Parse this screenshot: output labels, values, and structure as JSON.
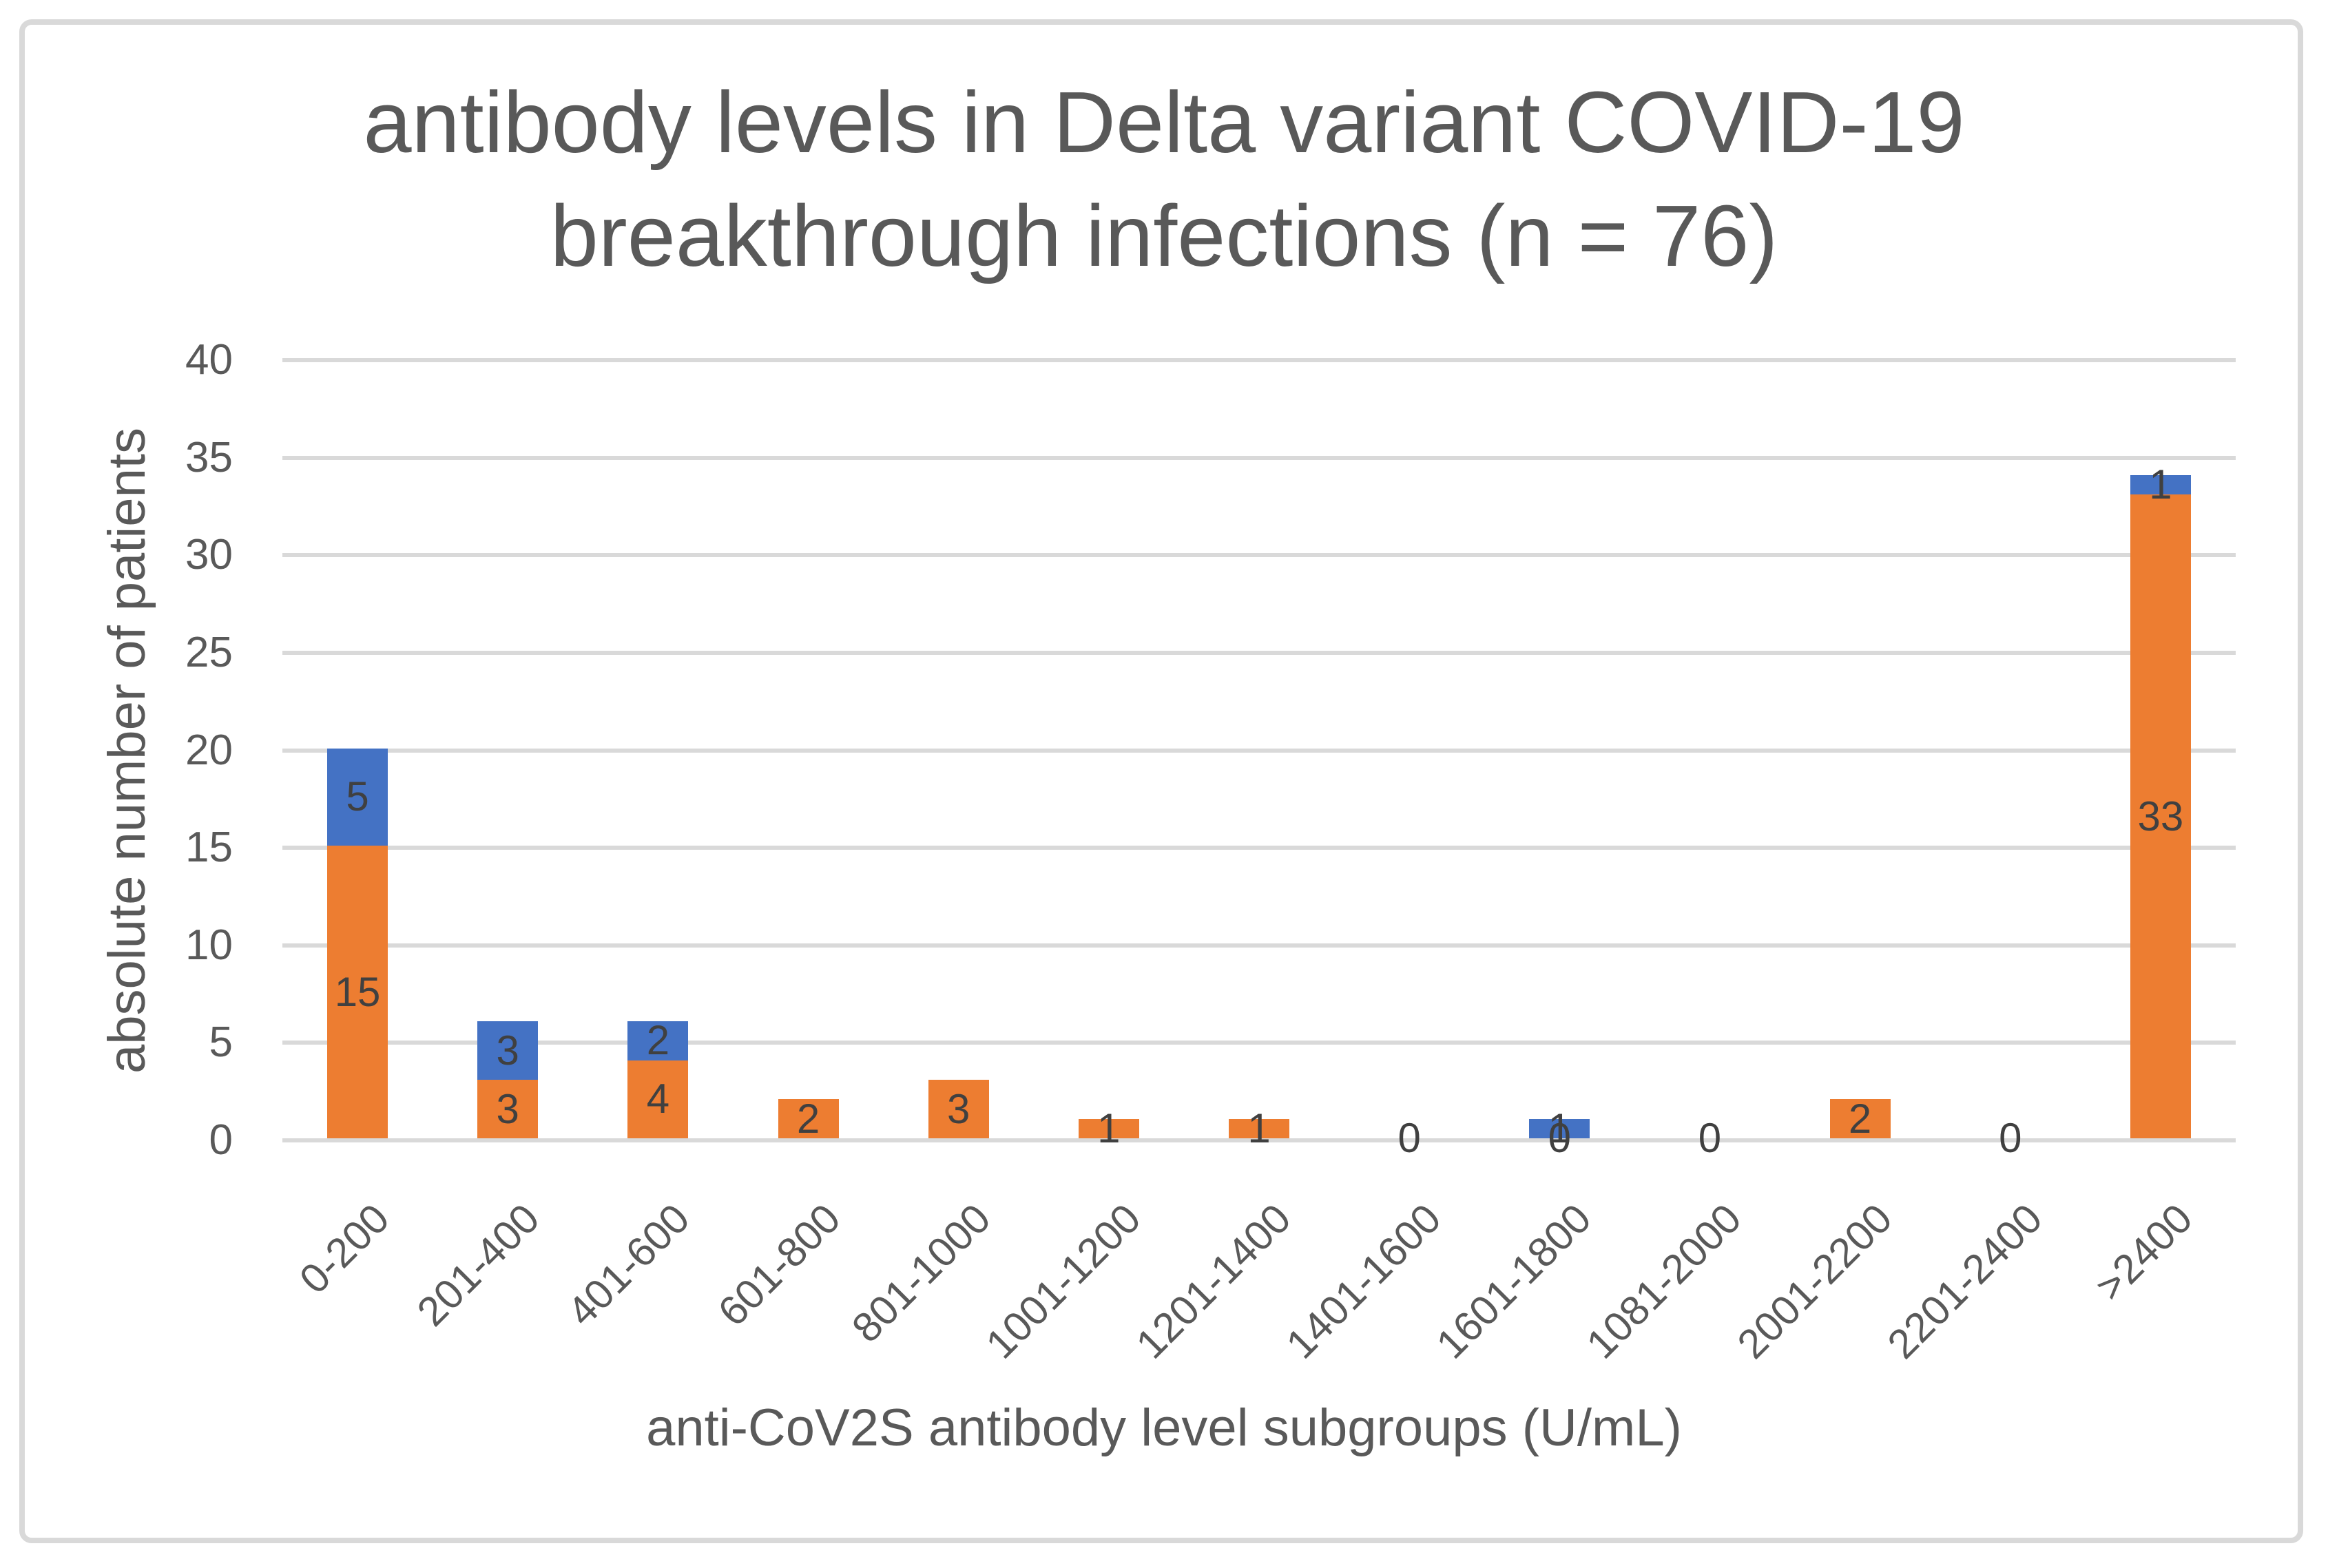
{
  "title_lines": [
    "antibody levels in Delta variant COVID-19",
    "breakthrough infections (n = 76)"
  ],
  "chart_data": {
    "type": "bar",
    "stacked": true,
    "title": "antibody levels in Delta variant COVID-19 breakthrough infections (n = 76)",
    "xlabel": "anti-CoV2S antibody level subgroups (U/mL)",
    "ylabel": "absolute number of patients",
    "categories": [
      "0-200",
      "201-400",
      "401-600",
      "601-800",
      "801-1000",
      "1001-1200",
      "1201-1400",
      "1401-1600",
      "1601-1800",
      "1081-2000",
      "2001-2200",
      "2201-2400",
      ">2400"
    ],
    "series": [
      {
        "name": "orange-bottom-segment",
        "color": "#ED7D31",
        "values": [
          15,
          3,
          4,
          2,
          3,
          1,
          1,
          0,
          0,
          0,
          2,
          0,
          33
        ],
        "data_labels": "all"
      },
      {
        "name": "blue-top-segment",
        "color": "#4472C4",
        "values": [
          5,
          3,
          2,
          0,
          0,
          0,
          0,
          0,
          1,
          0,
          0,
          0,
          1
        ],
        "data_labels": "nonzero_only"
      }
    ],
    "ylim": [
      0,
      40
    ],
    "yticks": [
      0,
      5,
      10,
      15,
      20,
      25,
      30,
      35,
      40
    ],
    "grid": true,
    "legend": "none"
  },
  "colors": {
    "grid": "#D9D9D9",
    "axis_text": "#595959",
    "data_label": "#404040",
    "frame_border": "#D9D9D9",
    "background": "#FFFFFF"
  }
}
